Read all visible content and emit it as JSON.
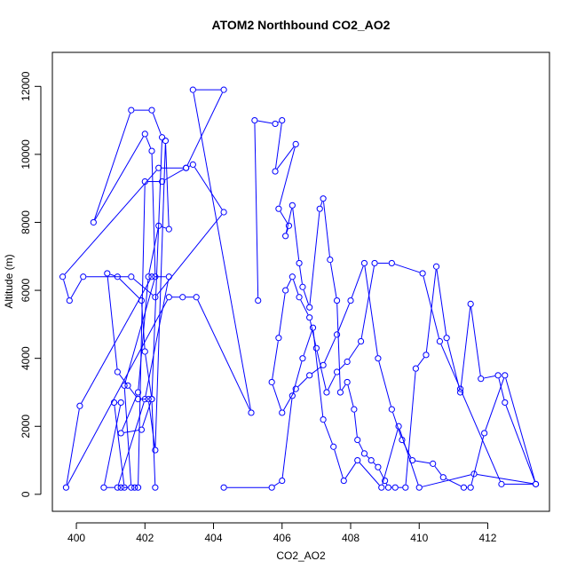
{
  "chart_data": {
    "type": "line",
    "title": "ATOM2 Northbound CO2_AO2",
    "xlabel": "CO2_AO2",
    "ylabel": "Altitude (m)",
    "xlim": [
      399.3,
      413.8
    ],
    "ylim": [
      -500,
      13000
    ],
    "xticks": [
      400,
      402,
      404,
      406,
      408,
      410,
      412
    ],
    "yticks": [
      0,
      2000,
      4000,
      6000,
      8000,
      10000,
      12000
    ],
    "grid": false,
    "color": "#0000ff",
    "series": [
      {
        "x": [
          402.3,
          402.2,
          402.0,
          401.9,
          401.2,
          400.9,
          401.2,
          401.5,
          401.8,
          402.1,
          402.3,
          402.6,
          402.7,
          402.4,
          402.1,
          401.8,
          401.3,
          401.9,
          402.2,
          402.5,
          402.2,
          401.6,
          400.5,
          402.0,
          402.2,
          402.3,
          401.4,
          401.6,
          401.3,
          401.4,
          401.1,
          401.3,
          400.8,
          401.2,
          402.0,
          402.7,
          402.2,
          400.1,
          399.7,
          402.7,
          403.1,
          403.5,
          405.1,
          403.4,
          404.3,
          403.2,
          403.4,
          404.3,
          402.3,
          401.6,
          400.2,
          399.8,
          399.6,
          402.4,
          403.2,
          402.5,
          402.0,
          401.8,
          401.7
        ],
        "y": [
          200,
          2800,
          4200,
          5700,
          6400,
          6500,
          3600,
          3200,
          2800,
          2800,
          1300,
          10400,
          7800,
          7900,
          6400,
          3000,
          1800,
          1900,
          2800,
          10500,
          11300,
          11300,
          8000,
          10600,
          10100,
          6400,
          3200,
          200,
          200,
          200,
          2700,
          2700,
          200,
          200,
          2800,
          6400,
          6400,
          2600,
          200,
          5800,
          5800,
          5800,
          2400,
          11900,
          11900,
          9600,
          9700,
          8300,
          5800,
          6400,
          6400,
          5700,
          6400,
          9600,
          9600,
          9200,
          9200,
          200,
          200
        ]
      },
      {
        "x": [
          405.3,
          405.2,
          405.8,
          406.0,
          405.8,
          406.4,
          405.9,
          406.2,
          406.1,
          406.3,
          406.5,
          406.6,
          406.8,
          407.1,
          407.2,
          407.4,
          407.6,
          407.7,
          407.9,
          408.1,
          408.2,
          408.4,
          408.6,
          408.8,
          409.0,
          409.1,
          409.3,
          409.6,
          409.9,
          410.2,
          410.5,
          410.8,
          411.2,
          411.5,
          411.8,
          412.3,
          412.5,
          413.4,
          412.4,
          411.2,
          410.6,
          410.1,
          409.2,
          408.7,
          408.3,
          407.9,
          407.6,
          407.3,
          407.0,
          406.8,
          406.5,
          406.3,
          406.1,
          405.9,
          405.7,
          406.0,
          406.4,
          406.8,
          407.2,
          407.6,
          408.0,
          408.4,
          408.8,
          409.2,
          409.5,
          409.8,
          410.4,
          410.7,
          411.3,
          411.5,
          411.9,
          412.5,
          413.4,
          411.6,
          410.0,
          409.4,
          408.9,
          408.2,
          407.8,
          407.5,
          407.2,
          406.9,
          406.6,
          406.3,
          406.0,
          405.7,
          404.3
        ],
        "y": [
          5700,
          11000,
          10900,
          11000,
          9500,
          10300,
          8400,
          7900,
          7600,
          8500,
          6800,
          6100,
          5500,
          8400,
          8700,
          6900,
          5700,
          3000,
          3300,
          2500,
          1600,
          1200,
          1000,
          800,
          400,
          200,
          200,
          200,
          3700,
          4100,
          6700,
          4600,
          3000,
          5600,
          3400,
          3500,
          2700,
          300,
          300,
          3100,
          4500,
          6500,
          6800,
          6800,
          4500,
          3900,
          3600,
          3000,
          4300,
          5200,
          5800,
          6400,
          6000,
          4600,
          3300,
          2400,
          3100,
          3500,
          3800,
          4700,
          5700,
          6800,
          4000,
          2500,
          1600,
          1000,
          900,
          500,
          200,
          200,
          1800,
          3500,
          300,
          600,
          200,
          2000,
          200,
          1000,
          400,
          1400,
          2200,
          4900,
          4000,
          2900,
          400,
          200,
          200
        ]
      }
    ]
  }
}
